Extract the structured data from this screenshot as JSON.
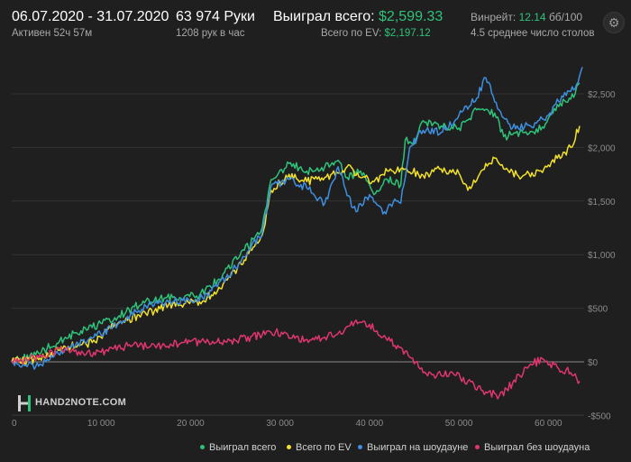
{
  "header": {
    "date_range": "06.07.2020 - 31.07.2020",
    "active_time": "Активен 52ч 57м",
    "hands": "63 974 Руки",
    "hands_per_hour": "1208 рук в час",
    "won_label": "Выиграл всего:",
    "won_value": "$2,599.33",
    "ev_label": "Всего по EV:",
    "ev_value": "$2,197.12",
    "winrate_label": "Винрейт:",
    "winrate_value": "12.14",
    "winrate_unit": "бб/100",
    "avg_tables": "4.5 среднее число столов"
  },
  "logo": {
    "text": "HAND2NOTE.COM"
  },
  "icons": {
    "settings": "gear-icon"
  },
  "colors": {
    "won": "#2fc27a",
    "ev": "#f2e12b",
    "showdown": "#3f8fe0",
    "non_showdown": "#e0366e",
    "background": "#1f1f1f"
  },
  "legend": {
    "won": "Выиграл всего",
    "ev": "Всего по EV",
    "showdown": "Выиграл на шоудауне",
    "non_showdown": "Выиграл без шоудауна"
  },
  "chart_data": {
    "type": "line",
    "xlim": [
      0,
      64000
    ],
    "ylim": [
      -500,
      2700
    ],
    "x_ticks": [
      0,
      10000,
      20000,
      30000,
      40000,
      50000,
      60000
    ],
    "x_tick_labels": [
      "0",
      "10 000",
      "20 000",
      "30 000",
      "40 000",
      "50 000",
      "60 000"
    ],
    "y_ticks": [
      -500,
      0,
      500,
      1000,
      1500,
      2000,
      2500
    ],
    "y_tick_labels": [
      "-$500",
      "$0",
      "$500",
      "$1,000",
      "$1,500",
      "$2,000",
      "$2,500"
    ],
    "series": [
      {
        "name": "Выиграл всего",
        "x": [
          0,
          3000,
          6000,
          9000,
          12000,
          15000,
          18000,
          21000,
          23000,
          26000,
          28000,
          29000,
          31000,
          33000,
          35000,
          36500,
          37500,
          39000,
          40500,
          42000,
          43500,
          44000,
          45000,
          46000,
          48000,
          50000,
          52000,
          54000,
          55000,
          56000,
          58000,
          59500,
          61000,
          62500,
          63500
        ],
        "y": [
          0,
          80,
          230,
          320,
          430,
          570,
          600,
          620,
          760,
          1040,
          1250,
          1700,
          1850,
          1780,
          1820,
          1880,
          1720,
          1780,
          1560,
          1700,
          1650,
          2070,
          2030,
          2250,
          2200,
          2180,
          2350,
          2320,
          2100,
          2120,
          2150,
          2180,
          2400,
          2450,
          2600
        ]
      },
      {
        "name": "Всего по EV",
        "x": [
          0,
          3000,
          6000,
          9000,
          12000,
          15000,
          18000,
          21000,
          23000,
          26000,
          28000,
          29000,
          31000,
          33000,
          35000,
          36500,
          37500,
          39000,
          40500,
          42000,
          43500,
          44000,
          46000,
          48000,
          50000,
          51000,
          53000,
          54000,
          55000,
          57000,
          59000,
          61000,
          62500,
          63500
        ],
        "y": [
          0,
          20,
          140,
          180,
          370,
          450,
          540,
          560,
          660,
          950,
          1180,
          1600,
          1750,
          1680,
          1720,
          1760,
          1820,
          1720,
          1680,
          1780,
          1800,
          1800,
          1740,
          1800,
          1760,
          1600,
          1850,
          1900,
          1800,
          1720,
          1780,
          1900,
          2000,
          2200
        ]
      },
      {
        "name": "Выиграл на шоудауне",
        "x": [
          0,
          3000,
          6000,
          9000,
          12000,
          15000,
          18000,
          21000,
          23000,
          26000,
          28000,
          29000,
          31000,
          33000,
          35000,
          36500,
          37500,
          38500,
          40000,
          41500,
          43000,
          43500,
          44500,
          46000,
          48000,
          50000,
          52000,
          53000,
          54500,
          56000,
          58000,
          60000,
          61500,
          63000,
          63800
        ],
        "y": [
          0,
          -40,
          120,
          220,
          360,
          520,
          560,
          580,
          700,
          980,
          1200,
          1640,
          1700,
          1620,
          1480,
          1820,
          1550,
          1400,
          1560,
          1380,
          1500,
          1480,
          2000,
          2160,
          2140,
          2300,
          2460,
          2650,
          2350,
          2180,
          2200,
          2300,
          2480,
          2550,
          2750
        ]
      },
      {
        "name": "Выиграл без шоудауна",
        "x": [
          0,
          3000,
          6000,
          8000,
          10000,
          13000,
          16000,
          19000,
          22000,
          25000,
          28000,
          29500,
          31000,
          33000,
          35000,
          37000,
          38500,
          40000,
          42000,
          44000,
          45500,
          47000,
          49000,
          51000,
          53000,
          54500,
          56000,
          58000,
          59500,
          61000,
          62500,
          63500
        ],
        "y": [
          0,
          40,
          130,
          80,
          90,
          150,
          150,
          180,
          190,
          200,
          250,
          280,
          220,
          210,
          230,
          260,
          390,
          350,
          200,
          100,
          -50,
          -120,
          -100,
          -180,
          -280,
          -320,
          -200,
          -20,
          20,
          -50,
          -100,
          -180
        ]
      }
    ]
  }
}
